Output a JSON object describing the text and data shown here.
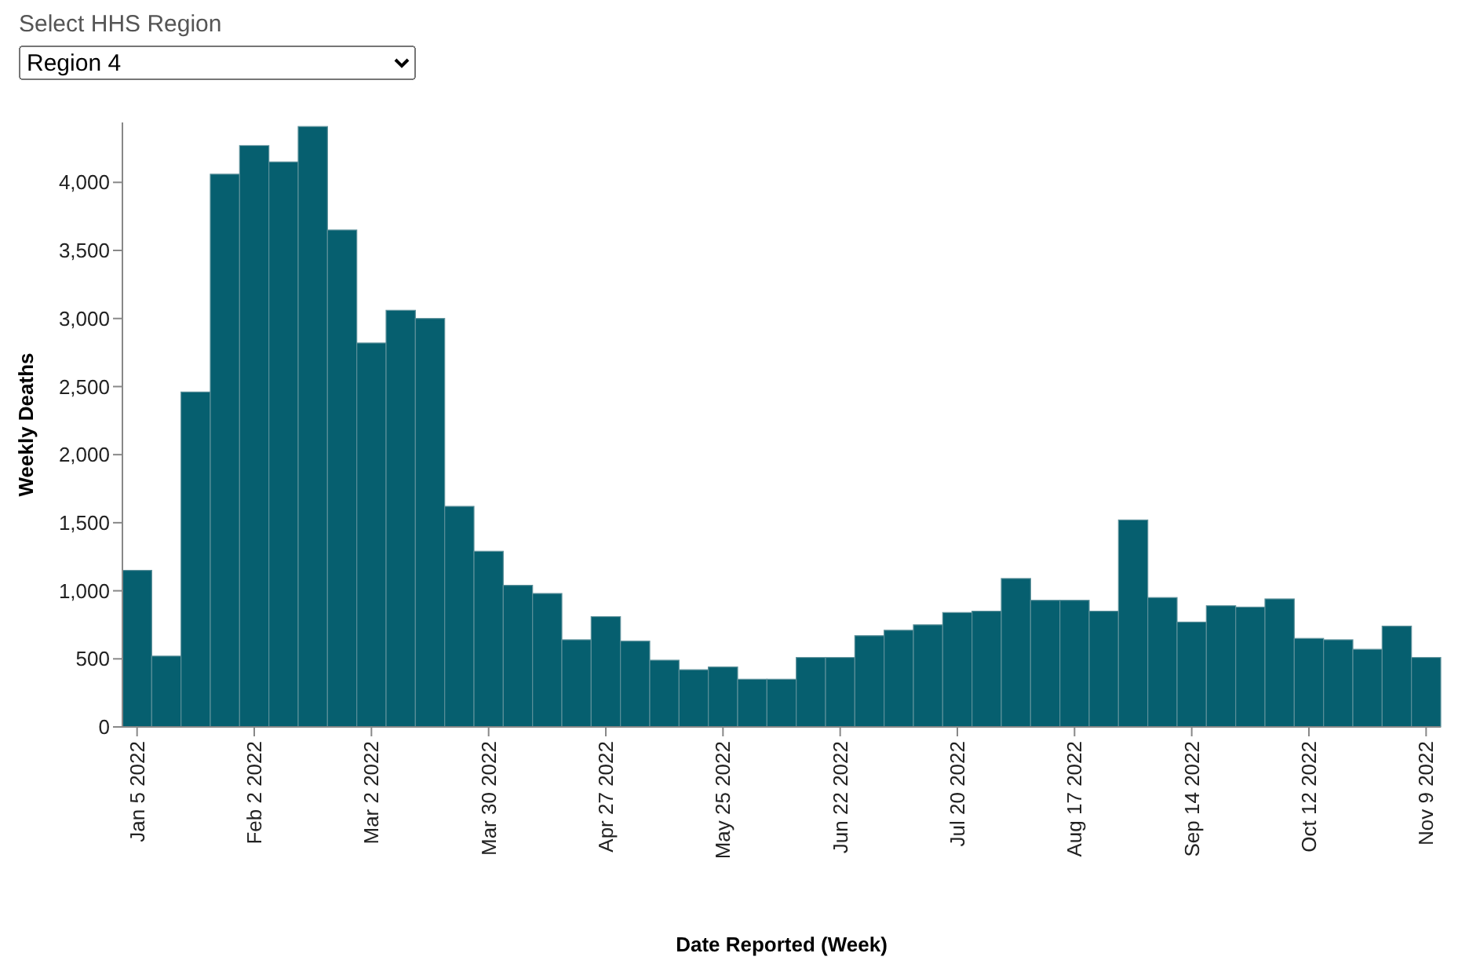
{
  "chart_data": {
    "type": "bar",
    "xlabel": "Date Reported (Week)",
    "ylabel": "Weekly Deaths",
    "annotations": [
      "Select HHS Region",
      "Region 4"
    ],
    "color": "#065f6f",
    "x": [
      "2022-01-05",
      "2022-01-12",
      "2022-01-19",
      "2022-01-26",
      "2022-02-02",
      "2022-02-09",
      "2022-02-16",
      "2022-02-23",
      "2022-03-02",
      "2022-03-09",
      "2022-03-16",
      "2022-03-23",
      "2022-03-30",
      "2022-04-06",
      "2022-04-13",
      "2022-04-20",
      "2022-04-27",
      "2022-05-04",
      "2022-05-11",
      "2022-05-18",
      "2022-05-25",
      "2022-06-01",
      "2022-06-08",
      "2022-06-15",
      "2022-06-22",
      "2022-06-29",
      "2022-07-06",
      "2022-07-13",
      "2022-07-20",
      "2022-07-27",
      "2022-08-03",
      "2022-08-10",
      "2022-08-17",
      "2022-08-24",
      "2022-08-31",
      "2022-09-07",
      "2022-09-14",
      "2022-09-21",
      "2022-09-28",
      "2022-10-05",
      "2022-10-12",
      "2022-10-19",
      "2022-10-26",
      "2022-11-02",
      "2022-11-09"
    ],
    "values": [
      1150,
      520,
      2460,
      4060,
      4270,
      4150,
      4410,
      3650,
      2820,
      3060,
      3000,
      1620,
      1290,
      1040,
      980,
      640,
      810,
      630,
      490,
      420,
      440,
      350,
      350,
      510,
      510,
      670,
      710,
      750,
      840,
      850,
      1090,
      930,
      930,
      850,
      1520,
      950,
      770,
      890,
      880,
      940,
      650,
      640,
      570,
      740,
      510
    ],
    "xlim": [
      "2022-01-01T12:00",
      "2022-11-12T12:00"
    ],
    "xticks": [
      {
        "value": "2022-01-05",
        "label": "Jan 5 2022"
      },
      {
        "value": "2022-02-02",
        "label": "Feb 2 2022"
      },
      {
        "value": "2022-03-02",
        "label": "Mar 2 2022"
      },
      {
        "value": "2022-03-30",
        "label": "Mar 30 2022"
      },
      {
        "value": "2022-04-27",
        "label": "Apr 27 2022"
      },
      {
        "value": "2022-05-25",
        "label": "May 25 2022"
      },
      {
        "value": "2022-06-22",
        "label": "Jun 22 2022"
      },
      {
        "value": "2022-07-20",
        "label": "Jul 20 2022"
      },
      {
        "value": "2022-08-17",
        "label": "Aug 17 2022"
      },
      {
        "value": "2022-09-14",
        "label": "Sep 14 2022"
      },
      {
        "value": "2022-10-12",
        "label": "Oct 12 2022"
      },
      {
        "value": "2022-11-09",
        "label": "Nov 9 2022"
      }
    ],
    "ylim": [
      0,
      4440
    ],
    "yticks": [
      0,
      {
        "value": 500,
        "label": "500"
      },
      {
        "value": 1000,
        "label": "1,000"
      },
      {
        "value": 1500,
        "label": "1,500"
      },
      {
        "value": 2000,
        "label": "2,000"
      },
      {
        "value": 2500,
        "label": "2,500"
      },
      {
        "value": 3000,
        "label": "3,000"
      },
      {
        "value": 3500,
        "label": "3,500"
      },
      {
        "value": 4000,
        "label": "4,000"
      }
    ],
    "grid": false
  }
}
